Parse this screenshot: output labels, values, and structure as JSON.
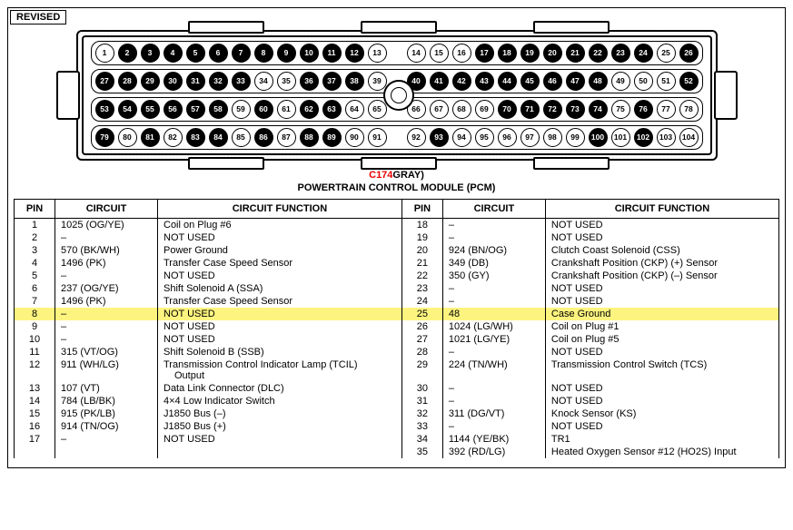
{
  "revised_label": "REVISED",
  "connector_id": "C174",
  "connector_color_suffix": "GRAY)",
  "module_name": "POWERTRAIN CONTROL MODULE (PCM)",
  "headers": {
    "pin": "PIN",
    "circuit": "CIRCUIT",
    "function": "CIRCUIT FUNCTION"
  },
  "highlight_pin": 25,
  "highlight_color": "#fdf47f",
  "connector_id_color": "#e60000",
  "filled_pins": [
    2,
    3,
    4,
    5,
    6,
    7,
    8,
    9,
    10,
    11,
    12,
    17,
    18,
    19,
    20,
    21,
    22,
    23,
    24,
    26,
    27,
    28,
    29,
    30,
    31,
    32,
    33,
    36,
    37,
    38,
    40,
    41,
    42,
    43,
    44,
    45,
    46,
    47,
    48,
    52,
    53,
    54,
    55,
    56,
    57,
    58,
    60,
    62,
    63,
    70,
    71,
    72,
    73,
    74,
    76,
    79,
    81,
    83,
    84,
    86,
    88,
    89,
    93,
    100,
    102
  ],
  "left_rows": [
    {
      "pin": 1,
      "circuit": "1025 (OG/YE)",
      "func": "Coil on Plug #6"
    },
    {
      "pin": 2,
      "circuit": "–",
      "func": "NOT USED"
    },
    {
      "pin": 3,
      "circuit": "570 (BK/WH)",
      "func": "Power Ground"
    },
    {
      "pin": 4,
      "circuit": "1496 (PK)",
      "func": "Transfer Case Speed Sensor"
    },
    {
      "pin": 5,
      "circuit": "–",
      "func": "NOT USED"
    },
    {
      "pin": 6,
      "circuit": "237 (OG/YE)",
      "func": "Shift Solenoid A (SSA)"
    },
    {
      "pin": 7,
      "circuit": "1496 (PK)",
      "func": "Transfer Case Speed Sensor"
    },
    {
      "pin": 8,
      "circuit": "–",
      "func": "NOT USED"
    },
    {
      "pin": 9,
      "circuit": "–",
      "func": "NOT USED"
    },
    {
      "pin": 10,
      "circuit": "–",
      "func": "NOT USED"
    },
    {
      "pin": 11,
      "circuit": "315 (VT/OG)",
      "func": "Shift Solenoid B (SSB)"
    },
    {
      "pin": 12,
      "circuit": "911 (WH/LG)",
      "func": "Transmission Control Indicator Lamp (TCIL)",
      "func2": "Output"
    },
    {
      "pin": 13,
      "circuit": "107 (VT)",
      "func": "Data Link Connector (DLC)"
    },
    {
      "pin": 14,
      "circuit": "784 (LB/BK)",
      "func": "4×4 Low Indicator Switch"
    },
    {
      "pin": 15,
      "circuit": "915 (PK/LB)",
      "func": "J1850 Bus (–)"
    },
    {
      "pin": 16,
      "circuit": "914 (TN/OG)",
      "func": "J1850 Bus (+)"
    },
    {
      "pin": 17,
      "circuit": "–",
      "func": "NOT USED"
    }
  ],
  "right_rows": [
    {
      "pin": 18,
      "circuit": "–",
      "func": "NOT USED"
    },
    {
      "pin": 19,
      "circuit": "–",
      "func": "NOT USED"
    },
    {
      "pin": 20,
      "circuit": "924  (BN/OG)",
      "func": "Clutch Coast Solenoid (CSS)"
    },
    {
      "pin": 21,
      "circuit": "349 (DB)",
      "func": "Crankshaft Position (CKP) (+) Sensor"
    },
    {
      "pin": 22,
      "circuit": "350 (GY)",
      "func": "Crankshaft Position (CKP) (–) Sensor"
    },
    {
      "pin": 23,
      "circuit": "–",
      "func": "NOT USED"
    },
    {
      "pin": 24,
      "circuit": "–",
      "func": "NOT USED"
    },
    {
      "pin": 25,
      "circuit": "48",
      "func": "Case Ground"
    },
    {
      "pin": 26,
      "circuit": "1024 (LG/WH)",
      "func": "Coil on Plug #1"
    },
    {
      "pin": 27,
      "circuit": "1021 (LG/YE)",
      "func": "Coil on Plug #5"
    },
    {
      "pin": 28,
      "circuit": "–",
      "func": "NOT USED"
    },
    {
      "pin": 29,
      "circuit": "224 (TN/WH)",
      "func": "Transmission Control Switch (TCS)"
    },
    {
      "pin": 30,
      "circuit": "–",
      "func": "NOT USED"
    },
    {
      "pin": 31,
      "circuit": "–",
      "func": "NOT USED"
    },
    {
      "pin": 32,
      "circuit": "311 (DG/VT)",
      "func": "Knock Sensor (KS)"
    },
    {
      "pin": 33,
      "circuit": "–",
      "func": "NOT USED"
    },
    {
      "pin": 34,
      "circuit": "1144 (YE/BK)",
      "func": "TR1"
    },
    {
      "pin": 35,
      "circuit": "392 (RD/LG)",
      "func": "Heated Oxygen Sensor #12 (HO2S) Input"
    }
  ]
}
